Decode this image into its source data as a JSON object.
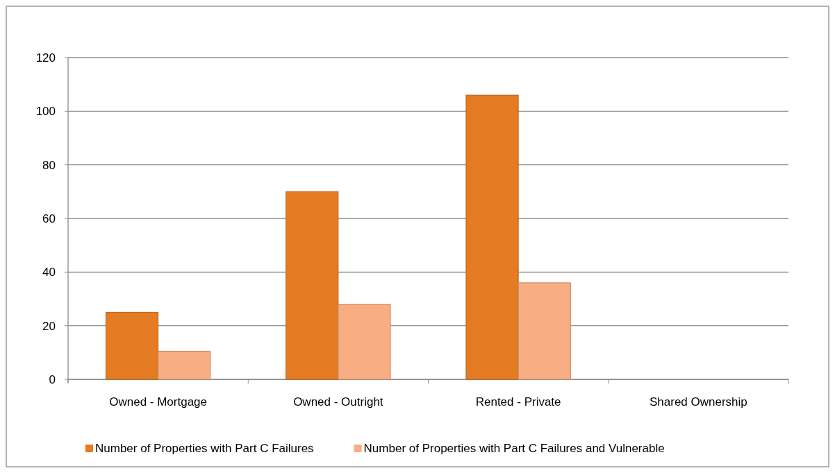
{
  "chart_data": {
    "type": "bar",
    "categories": [
      "Owned - Mortgage",
      "Owned - Outright",
      "Rented - Private",
      "Shared Ownership"
    ],
    "series": [
      {
        "name": "Number of Properties with Part C Failures",
        "color": "#e57b22",
        "values": [
          25,
          70,
          106,
          0
        ]
      },
      {
        "name": "Number of Properties with Part C Failures and Vulnerable",
        "color": "#f9ad82",
        "values": [
          10.5,
          28,
          36,
          0
        ]
      }
    ],
    "ylim": [
      0,
      120
    ],
    "yticks": [
      0,
      20,
      40,
      60,
      80,
      100,
      120
    ],
    "grid": "y",
    "legend": "bottom"
  }
}
